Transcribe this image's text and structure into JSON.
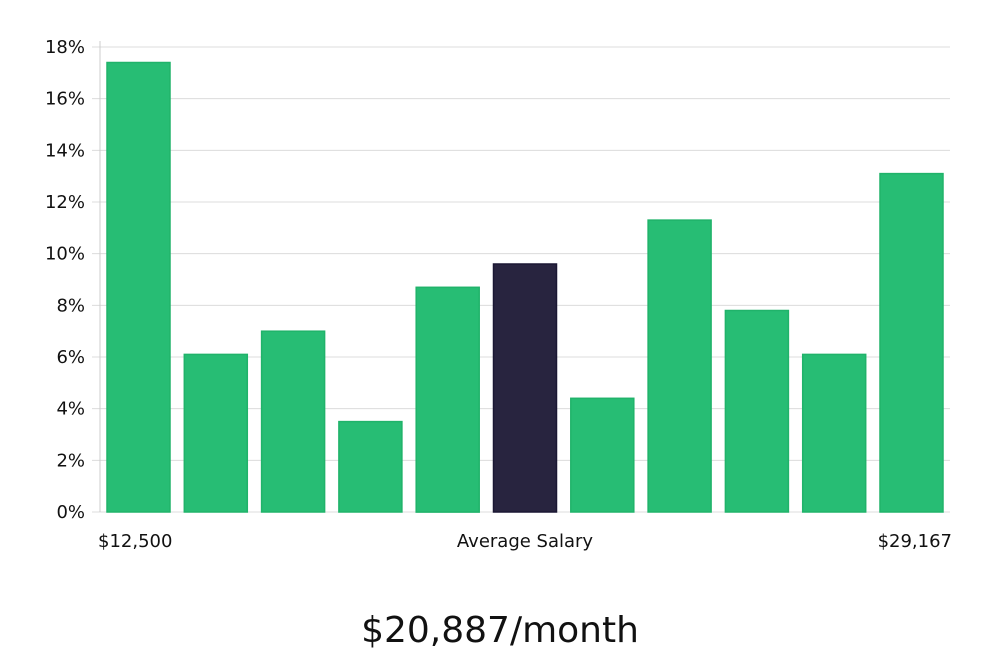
{
  "chart_data": {
    "type": "bar",
    "title": "",
    "xlabel": "Average Salary",
    "ylabel": "",
    "x_range_labels": {
      "min": "$12,500",
      "center": "Average Salary",
      "max": "$29,167"
    },
    "ylim": [
      0,
      18
    ],
    "yticks": [
      0,
      2,
      4,
      6,
      8,
      10,
      12,
      14,
      16,
      18
    ],
    "ytick_labels": [
      "0%",
      "2%",
      "4%",
      "6%",
      "8%",
      "10%",
      "12%",
      "14%",
      "16%",
      "18%"
    ],
    "grid": true,
    "bins": [
      1,
      2,
      3,
      4,
      5,
      6,
      7,
      8,
      9,
      10,
      11
    ],
    "values": [
      17.4,
      6.1,
      7.0,
      3.5,
      8.7,
      9.6,
      4.4,
      11.3,
      7.8,
      6.1,
      13.1
    ],
    "highlight_index": 5,
    "colors": {
      "bar": "#27bd74",
      "highlight": "#28243f",
      "grid": "#dcdcdc",
      "axis": "#cccccc"
    }
  },
  "summary": {
    "average_monthly": "$20,887/month"
  }
}
